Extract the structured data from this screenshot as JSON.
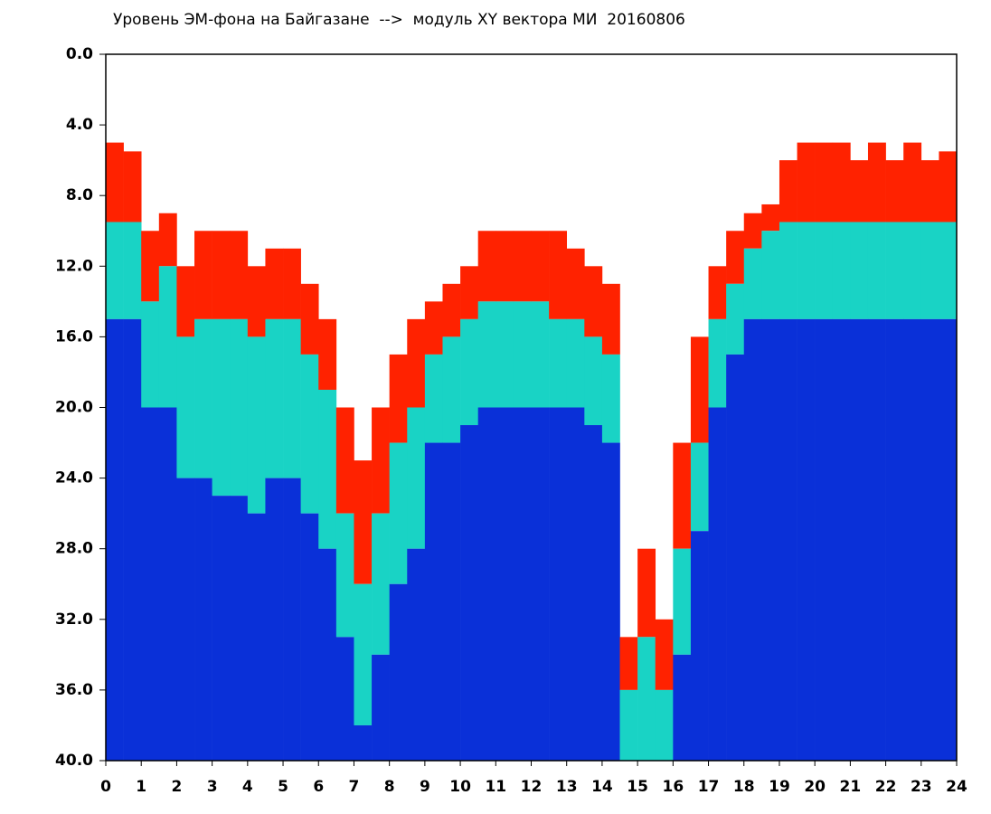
{
  "chart_data": {
    "type": "spectrogram",
    "title": "Уровень ЭМ-фона на Байгазане  -->  модуль XY вектора МИ  20160806",
    "x": [
      0,
      0.5,
      1,
      1.5,
      2,
      2.5,
      3,
      3.5,
      4,
      4.5,
      5,
      5.5,
      6,
      6.5,
      7,
      7.5,
      8,
      8.5,
      9,
      9.5,
      10,
      10.5,
      11,
      11.5,
      12,
      12.5,
      13,
      13.5,
      14,
      14.5,
      15,
      15.5,
      16,
      16.5,
      17,
      17.5,
      18,
      18.5,
      19,
      19.5,
      20,
      20.5,
      21,
      21.5,
      22,
      22.5,
      23,
      23.5
    ],
    "series": [
      {
        "color": "#ff2200",
        "values": [
          5,
          5.5,
          10,
          9,
          12,
          10,
          10,
          10,
          12,
          11,
          11,
          13,
          15,
          20,
          23,
          20,
          17,
          15,
          14,
          13,
          12,
          10,
          10,
          10,
          10,
          10,
          11,
          12,
          13,
          33,
          28,
          32,
          22,
          16,
          12,
          10,
          9,
          8.5,
          6,
          5,
          5,
          5,
          6,
          5,
          6,
          5,
          6,
          5.5
        ]
      },
      {
        "color": "#19d3c5",
        "values": [
          9.5,
          9.5,
          14,
          12,
          16,
          15,
          15,
          15,
          16,
          15,
          15,
          17,
          19,
          26,
          30,
          26,
          22,
          20,
          17,
          16,
          15,
          14,
          14,
          14,
          14,
          15,
          15,
          16,
          17,
          36,
          33,
          36,
          28,
          22,
          15,
          13,
          11,
          10,
          9.5,
          9.5,
          9.5,
          9.5,
          9.5,
          9.5,
          9.5,
          9.5,
          9.5,
          9.5
        ]
      },
      {
        "color": "#0a30d8",
        "values": [
          15,
          15,
          20,
          20,
          24,
          24,
          25,
          25,
          26,
          24,
          24,
          26,
          28,
          33,
          38,
          34,
          30,
          28,
          22,
          22,
          21,
          20,
          20,
          20,
          20,
          20,
          20,
          21,
          22,
          null,
          null,
          null,
          34,
          27,
          20,
          17,
          15,
          15,
          15,
          15,
          15,
          15,
          15,
          15,
          15,
          15,
          15,
          15
        ]
      }
    ],
    "xlim": [
      0,
      24
    ],
    "xticks": [
      0,
      1,
      2,
      3,
      4,
      5,
      6,
      7,
      8,
      9,
      10,
      11,
      12,
      13,
      14,
      15,
      16,
      17,
      18,
      19,
      20,
      21,
      22,
      23,
      24
    ],
    "ylim": [
      40,
      0
    ],
    "yticks": [
      {
        "value": 0,
        "label": "0.0"
      },
      {
        "value": 4,
        "label": "4.0"
      },
      {
        "value": 8,
        "label": "8.0"
      },
      {
        "value": 12,
        "label": "12.0"
      },
      {
        "value": 16,
        "label": "16.0"
      },
      {
        "value": 20,
        "label": "20.0"
      },
      {
        "value": 24,
        "label": "24.0"
      },
      {
        "value": 28,
        "label": "28.0"
      },
      {
        "value": 32,
        "label": "32.0"
      },
      {
        "value": 36,
        "label": "36.0"
      },
      {
        "value": 40,
        "label": "40.0"
      }
    ]
  }
}
